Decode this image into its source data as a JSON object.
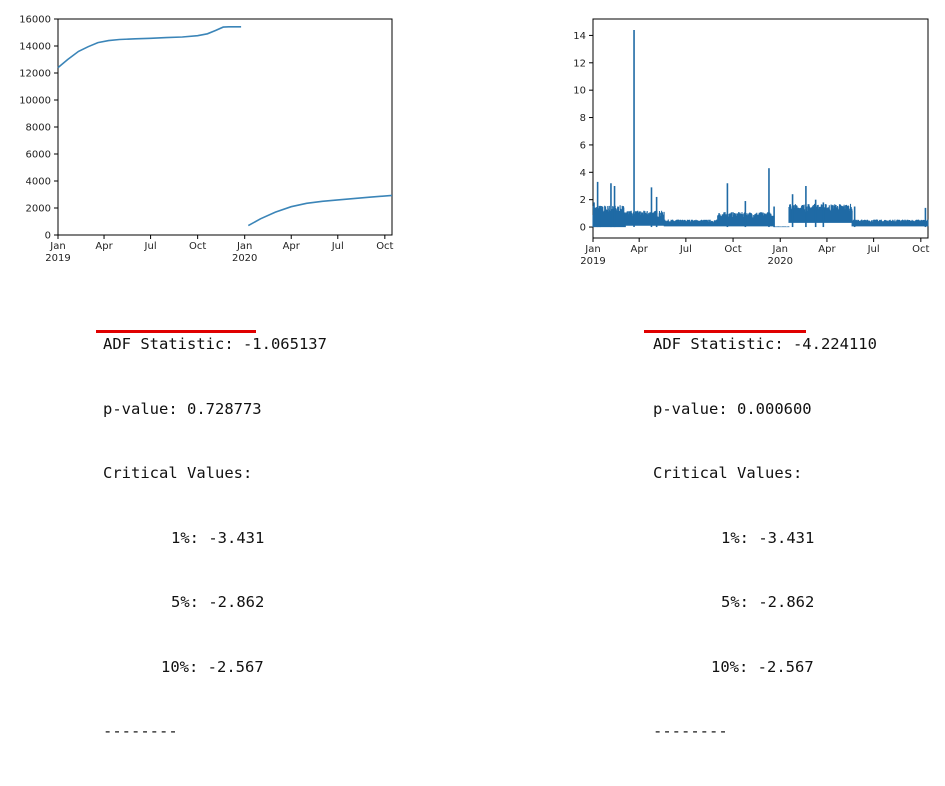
{
  "chart_data": [
    {
      "type": "line",
      "title": "",
      "xlabel": "",
      "ylabel": "",
      "x_range": [
        "2019-01-01",
        "2020-10-15"
      ],
      "ylim": [
        0,
        16000
      ],
      "y_ticks": [
        0,
        2000,
        4000,
        6000,
        8000,
        10000,
        12000,
        14000,
        16000
      ],
      "x_ticks": [
        {
          "date": "2019-01-01",
          "label": "Jan",
          "sub": "2019"
        },
        {
          "date": "2019-04-01",
          "label": "Apr",
          "sub": ""
        },
        {
          "date": "2019-07-01",
          "label": "Jul",
          "sub": ""
        },
        {
          "date": "2019-10-01",
          "label": "Oct",
          "sub": ""
        },
        {
          "date": "2020-01-01",
          "label": "Jan",
          "sub": "2020"
        },
        {
          "date": "2020-04-01",
          "label": "Apr",
          "sub": ""
        },
        {
          "date": "2020-07-01",
          "label": "Jul",
          "sub": ""
        },
        {
          "date": "2020-10-01",
          "label": "Oct",
          "sub": ""
        }
      ],
      "grid": false,
      "color": "#3b85b8",
      "series": [
        {
          "segments": [
            [
              [
                "2019-01-01",
                12400
              ],
              [
                "2019-01-20",
                13000
              ],
              [
                "2019-02-10",
                13600
              ],
              [
                "2019-03-01",
                13950
              ],
              [
                "2019-03-20",
                14250
              ],
              [
                "2019-04-10",
                14400
              ],
              [
                "2019-05-01",
                14480
              ],
              [
                "2019-06-01",
                14530
              ],
              [
                "2019-07-01",
                14570
              ],
              [
                "2019-08-01",
                14620
              ],
              [
                "2019-09-01",
                14670
              ],
              [
                "2019-10-01",
                14760
              ],
              [
                "2019-10-20",
                14900
              ],
              [
                "2019-11-05",
                15150
              ],
              [
                "2019-11-20",
                15400
              ],
              [
                "2019-12-01",
                15420
              ],
              [
                "2019-12-25",
                15420
              ]
            ],
            [
              [
                "2020-01-08",
                700
              ],
              [
                "2020-02-01",
                1200
              ],
              [
                "2020-03-01",
                1700
              ],
              [
                "2020-04-01",
                2100
              ],
              [
                "2020-05-01",
                2350
              ],
              [
                "2020-06-01",
                2500
              ],
              [
                "2020-07-01",
                2600
              ],
              [
                "2020-08-01",
                2700
              ],
              [
                "2020-09-01",
                2800
              ],
              [
                "2020-10-15",
                2930
              ]
            ]
          ]
        }
      ]
    },
    {
      "type": "line",
      "title": "",
      "xlabel": "",
      "ylabel": "",
      "x_range": [
        "2019-01-01",
        "2020-10-15"
      ],
      "ylim": [
        -0.8,
        15.2
      ],
      "y_ticks": [
        0,
        2,
        4,
        6,
        8,
        10,
        12,
        14
      ],
      "x_ticks": [
        {
          "date": "2019-01-01",
          "label": "Jan",
          "sub": "2019"
        },
        {
          "date": "2019-04-01",
          "label": "Apr",
          "sub": ""
        },
        {
          "date": "2019-07-01",
          "label": "Jul",
          "sub": ""
        },
        {
          "date": "2019-10-01",
          "label": "Oct",
          "sub": ""
        },
        {
          "date": "2020-01-01",
          "label": "Jan",
          "sub": "2020"
        },
        {
          "date": "2020-04-01",
          "label": "Apr",
          "sub": ""
        },
        {
          "date": "2020-07-01",
          "label": "Jul",
          "sub": ""
        },
        {
          "date": "2020-10-01",
          "label": "Oct",
          "sub": ""
        }
      ],
      "grid": false,
      "color": "#1f6aa5",
      "spikes": [
        [
          "2019-01-03",
          1.8
        ],
        [
          "2019-01-10",
          3.3
        ],
        [
          "2019-01-15",
          1.5
        ],
        [
          "2019-02-05",
          3.2
        ],
        [
          "2019-02-12",
          3.0
        ],
        [
          "2019-03-22",
          14.4
        ],
        [
          "2019-04-25",
          2.9
        ],
        [
          "2019-05-05",
          2.2
        ],
        [
          "2019-09-20",
          3.2
        ],
        [
          "2019-10-25",
          1.9
        ],
        [
          "2019-12-10",
          4.3
        ],
        [
          "2019-12-20",
          1.5
        ],
        [
          "2020-01-25",
          2.4
        ],
        [
          "2020-02-20",
          3.0
        ],
        [
          "2020-03-10",
          2.0
        ],
        [
          "2020-03-25",
          1.8
        ],
        [
          "2020-05-25",
          1.5
        ],
        [
          "2020-10-10",
          1.4
        ]
      ],
      "bands": [
        {
          "from": "2019-01-01",
          "to": "2019-03-05",
          "low": 0.0,
          "high": 1.6
        },
        {
          "from": "2019-03-05",
          "to": "2019-05-20",
          "low": 0.1,
          "high": 1.2
        },
        {
          "from": "2019-05-20",
          "to": "2019-12-20",
          "low": 0.05,
          "high": 0.55
        },
        {
          "from": "2019-09-01",
          "to": "2019-12-20",
          "low": 0.1,
          "high": 1.1
        },
        {
          "from": "2019-12-20",
          "to": "2020-01-18",
          "low": 0.0,
          "high": 0.05
        },
        {
          "from": "2020-01-18",
          "to": "2020-05-20",
          "low": 0.3,
          "high": 1.7
        },
        {
          "from": "2020-05-20",
          "to": "2020-10-15",
          "low": 0.05,
          "high": 0.55
        }
      ]
    }
  ],
  "stats_left": {
    "adf": "ADF Statistic: -1.065137",
    "pvalue": "p-value: 0.728773",
    "critical": "Critical Values:",
    "c1": "1%: -3.431",
    "c5": "5%: -2.862",
    "c10": "10%: -2.567",
    "sep": "--------"
  },
  "stats_right": {
    "adf": "ADF Statistic: -4.224110",
    "pvalue": "p-value: 0.000600",
    "critical": "Critical Values:",
    "c1": "1%: -3.431",
    "c5": "5%: -2.862",
    "c10": "10%: -2.567",
    "sep": "--------"
  },
  "highlight_color": "#e00000"
}
